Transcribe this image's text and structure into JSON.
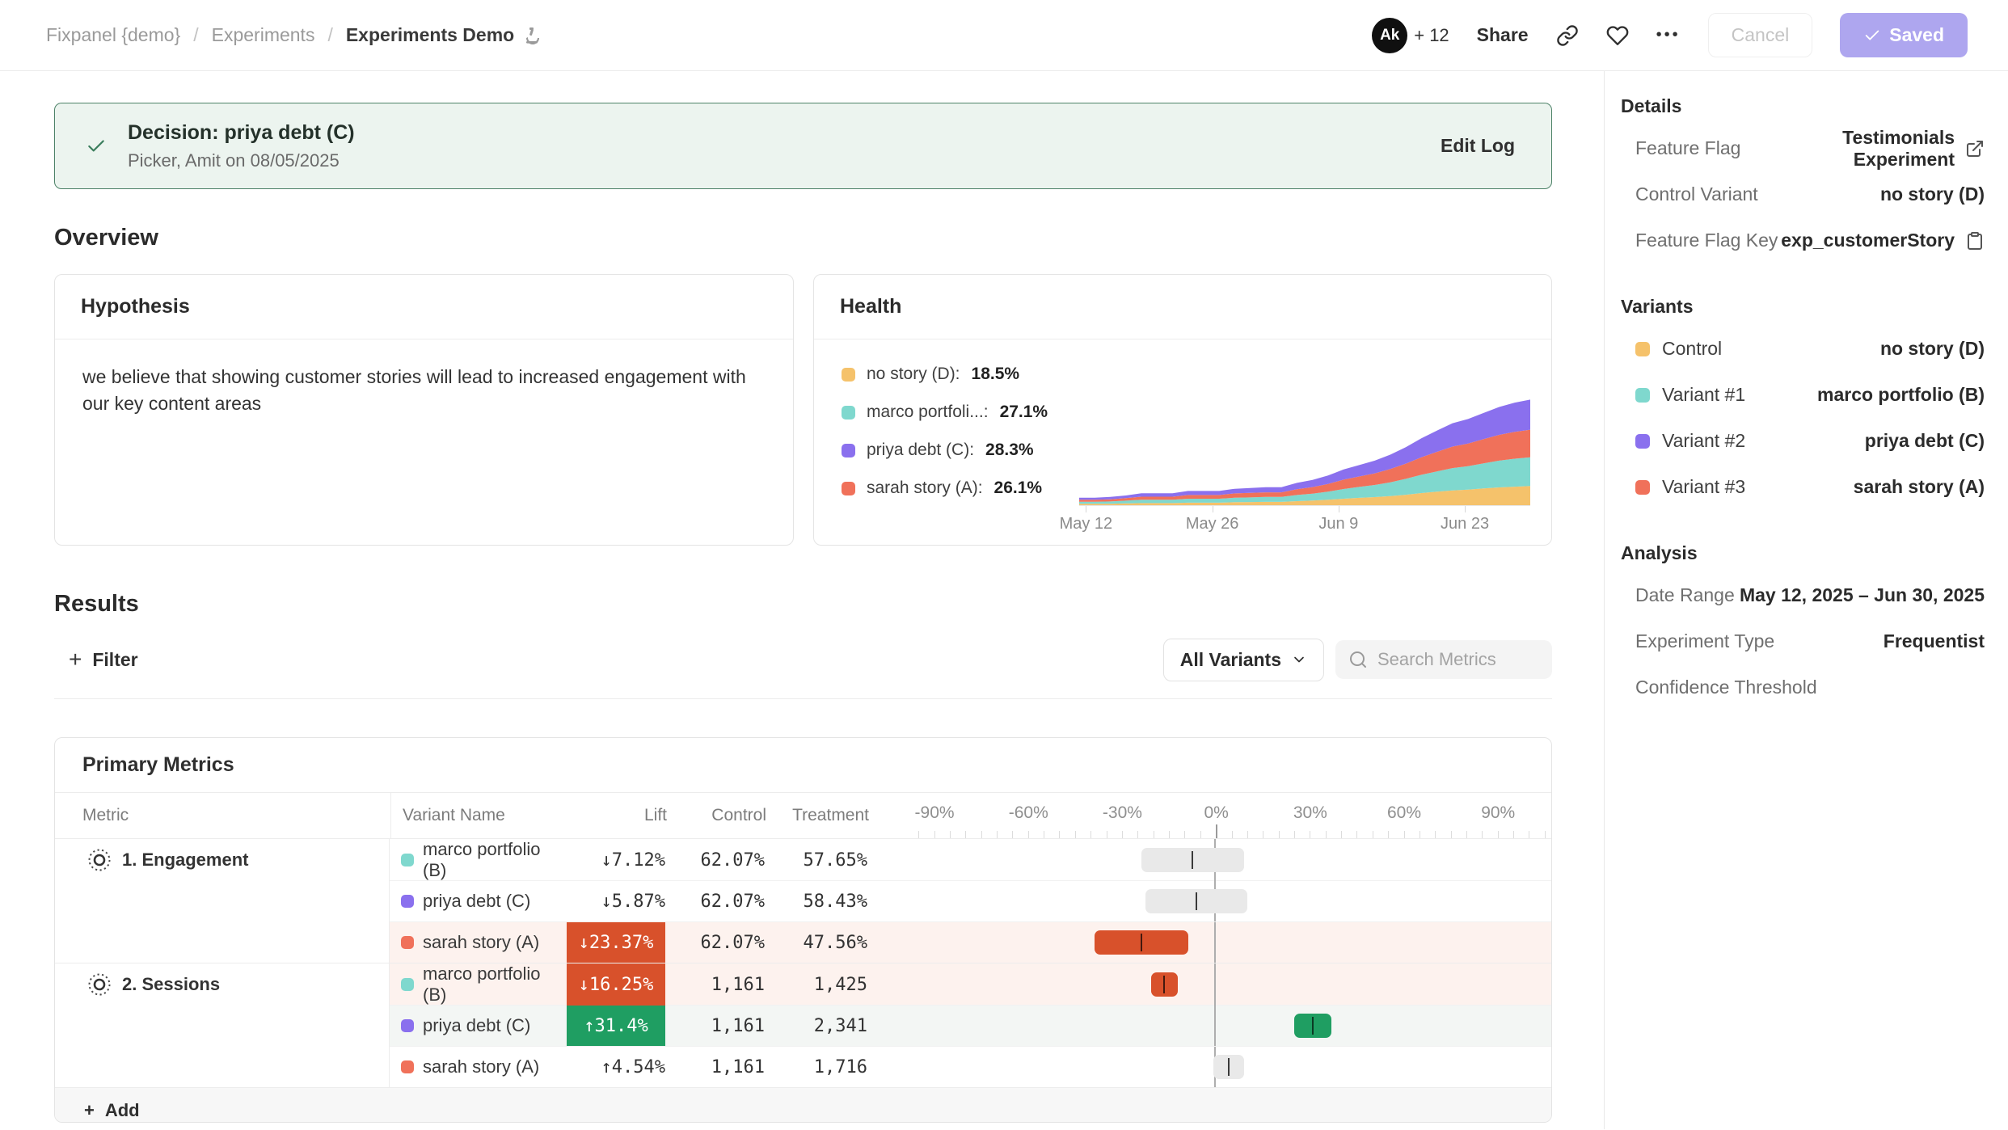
{
  "topbar": {
    "breadcrumb": [
      {
        "label": "Fixpanel {demo}"
      },
      {
        "label": "Experiments"
      },
      {
        "label": "Experiments Demo"
      }
    ],
    "separator": "/",
    "breadcrumb_icon": "microscope",
    "avatar_initials": "Ak",
    "collaborators_count": "+ 12",
    "share_label": "Share",
    "more_label": "•••",
    "cancel_label": "Cancel",
    "saved_label": "Saved"
  },
  "decision_banner": {
    "title": "Decision: priya debt (C)",
    "subtitle": "Picker, Amit on 08/05/2025",
    "action_label": "Edit Log"
  },
  "overview": {
    "heading": "Overview",
    "hypothesis_title": "Hypothesis",
    "hypothesis_body": "we believe that showing customer stories will lead to increased engagement with our key content areas",
    "health_title": "Health"
  },
  "results": {
    "heading": "Results",
    "filter_label": "Filter",
    "variant_filter_label": "All Variants",
    "search_placeholder": "Search Metrics"
  },
  "primary_metrics": {
    "title": "Primary Metrics",
    "columns": [
      "Metric",
      "Variant Name",
      "Lift",
      "Control",
      "Treatment"
    ],
    "add_label": "Add"
  },
  "sidebar": {
    "details_heading": "Details",
    "details_rows": [
      {
        "label": "Feature Flag",
        "value": "Testimonials Experiment",
        "icon": "external-link"
      },
      {
        "label": "Control Variant",
        "value": "no story (D)",
        "icon": null
      },
      {
        "label": "Feature Flag Key",
        "value": "exp_customerStory",
        "icon": "clipboard"
      }
    ],
    "variants_heading": "Variants",
    "variant_rows": [
      {
        "label": "Control",
        "color": "#F5C26B",
        "value": "no story (D)"
      },
      {
        "label": "Variant #1",
        "color": "#7FD8CE",
        "value": "marco portfolio (B)"
      },
      {
        "label": "Variant #2",
        "color": "#8A70EE",
        "value": "priya debt (C)"
      },
      {
        "label": "Variant #3",
        "color": "#F0715A",
        "value": "sarah story (A)"
      }
    ],
    "analysis_heading": "Analysis",
    "analysis_rows": [
      {
        "label": "Date Range",
        "value": "May 12, 2025 – Jun 30, 2025"
      },
      {
        "label": "Experiment Type",
        "value": "Frequentist"
      },
      {
        "label": "Confidence Threshold",
        "value": ""
      }
    ]
  },
  "colors": {
    "saved_accent": "#AEA6EF",
    "banner_green": "#4D8268",
    "negative": "#D8512B",
    "positive": "#1F9E62"
  },
  "chart_data": [
    {
      "id": "health_exposure",
      "type": "area",
      "stacked": true,
      "title": "Health",
      "x_range_labels": [
        "May 12",
        "Jun 30"
      ],
      "x_ticks": [
        {
          "label": "May 12",
          "pos_pct": 1.5
        },
        {
          "label": "May 26",
          "pos_pct": 29.5
        },
        {
          "label": "Jun 9",
          "pos_pct": 57.5
        },
        {
          "label": "Jun 23",
          "pos_pct": 85.5
        }
      ],
      "ylim": [
        0,
        80
      ],
      "legend": [
        {
          "label": "no story (D)",
          "pct": "18.5%",
          "color": "#F5C26B"
        },
        {
          "label": "marco portfoli...",
          "pct": "27.1%",
          "color": "#7FD8CE"
        },
        {
          "label": "priya debt (C)",
          "pct": "28.3%",
          "color": "#8A70EE"
        },
        {
          "label": "sarah story (A)",
          "pct": "26.1%",
          "color": "#F0715A"
        }
      ],
      "series": [
        {
          "name": "no story (D)",
          "color": "#F5C26B",
          "values": [
            0.9,
            0.9,
            1.0,
            1.2,
            1.4,
            1.4,
            1.4,
            1.7,
            1.7,
            1.7,
            2.0,
            2.1,
            2.2,
            2.2,
            2.7,
            3.1,
            3.6,
            4.3,
            4.9,
            5.4,
            6.1,
            7.0,
            8.1,
            9.0,
            9.9,
            10.4,
            11.2,
            11.9,
            12.4,
            12.8
          ]
        },
        {
          "name": "marco portfolio (B)",
          "color": "#7FD8CE",
          "values": [
            1.4,
            1.4,
            1.5,
            1.8,
            2.2,
            2.2,
            2.2,
            2.6,
            2.6,
            2.6,
            3.0,
            3.1,
            3.3,
            3.3,
            4.1,
            4.6,
            5.4,
            6.5,
            7.3,
            8.1,
            9.2,
            10.6,
            12.2,
            13.6,
            14.9,
            15.7,
            16.8,
            17.9,
            18.7,
            19.2
          ]
        },
        {
          "name": "sarah story (A)",
          "color": "#F0715A",
          "values": [
            1.3,
            1.3,
            1.4,
            1.7,
            2.1,
            2.1,
            2.1,
            2.5,
            2.5,
            2.5,
            2.9,
            3.0,
            3.1,
            3.1,
            3.9,
            4.4,
            5.2,
            6.3,
            7.0,
            7.8,
            8.9,
            10.2,
            11.7,
            13.1,
            14.4,
            15.1,
            16.2,
            17.2,
            18.0,
            18.5
          ]
        },
        {
          "name": "priya debt (C)",
          "color": "#8A70EE",
          "values": [
            1.4,
            1.4,
            1.6,
            1.8,
            2.3,
            2.3,
            2.3,
            2.7,
            2.7,
            2.7,
            3.1,
            3.3,
            3.4,
            3.4,
            4.2,
            4.8,
            5.7,
            6.8,
            7.6,
            8.5,
            9.6,
            11.0,
            12.7,
            14.2,
            15.6,
            16.4,
            17.5,
            18.7,
            19.5,
            20.1
          ]
        }
      ]
    },
    {
      "id": "lift_confidence_intervals",
      "type": "forest",
      "axis_range": [
        -97.5,
        107.5
      ],
      "axis_ticks": [
        {
          "pct": -90,
          "label": "-90%"
        },
        {
          "pct": -60,
          "label": "-60%"
        },
        {
          "pct": -30,
          "label": "-30%"
        },
        {
          "pct": 0,
          "label": "0%"
        },
        {
          "pct": 30,
          "label": "30%"
        },
        {
          "pct": 60,
          "label": "60%"
        },
        {
          "pct": 90,
          "label": "90%"
        }
      ],
      "minor_tick_step": 5,
      "groups": [
        {
          "metric": "1. Engagement",
          "rows": [
            {
              "variant": "marco portfolio (B)",
              "color": "#7FD8CE",
              "lift_display": "↓7.12%",
              "mean": -7.12,
              "ci": [
                -23.5,
                9.5
              ],
              "control": "62.07%",
              "treatment": "57.65%",
              "significance": "none"
            },
            {
              "variant": "priya debt (C)",
              "color": "#8A70EE",
              "lift_display": "↓5.87%",
              "mean": -5.87,
              "ci": [
                -22.0,
                10.5
              ],
              "control": "62.07%",
              "treatment": "58.43%",
              "significance": "none"
            },
            {
              "variant": "sarah story (A)",
              "color": "#F0715A",
              "lift_display": "↓23.37%",
              "mean": -23.37,
              "ci": [
                -38.5,
                -8.3
              ],
              "control": "62.07%",
              "treatment": "47.56%",
              "significance": "negative"
            }
          ]
        },
        {
          "metric": "2. Sessions",
          "rows": [
            {
              "variant": "marco portfolio (B)",
              "color": "#7FD8CE",
              "lift_display": "↓16.25%",
              "mean": -16.25,
              "ci": [
                -20.4,
                -11.9
              ],
              "control": "1,161",
              "treatment": "1,425",
              "significance": "negative"
            },
            {
              "variant": "priya debt (C)",
              "color": "#8A70EE",
              "lift_display": "↑31.4%",
              "mean": 31.4,
              "ci": [
                25.3,
                37.2
              ],
              "control": "1,161",
              "treatment": "2,341",
              "significance": "positive"
            },
            {
              "variant": "sarah story (A)",
              "color": "#F0715A",
              "lift_display": "↑4.54%",
              "mean": 4.54,
              "ci": [
                -0.3,
                9.4
              ],
              "control": "1,161",
              "treatment": "1,716",
              "significance": "none"
            }
          ]
        }
      ]
    }
  ]
}
